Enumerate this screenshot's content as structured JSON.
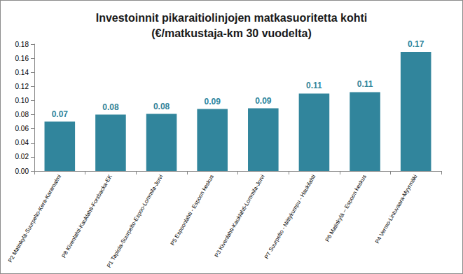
{
  "chart_data": {
    "type": "bar",
    "title": "Investoinnit pikaraitiolinjojen matkasuoritetta kohti\n(€/matkustaja-km 30 vuodelta)",
    "categories": [
      "P2 Matinkylä-Suurpelto-Kera-Karamalmi",
      "P8 Kivenlahti-Kauklahti-Forsbacka-EK",
      "P1 Tapiola-Suurpelto-Espoo-Lommila-Jorvi",
      "P5 Espoonlahti - Espoon keskus",
      "P3 Kivenlahti-Kauklahti-Lommila-Jorvi",
      "P7 Suurpelto - Niittykumpu - Haukilahti",
      "P6 Matinkylä – Espoon keskus",
      "P4 Vermo-Lintuvaara-Myyrmäki"
    ],
    "values": [
      0.07,
      0.08,
      0.081,
      0.088,
      0.089,
      0.11,
      0.112,
      0.169
    ],
    "value_labels": [
      "0.07",
      "0.08",
      "0.08",
      "0.09",
      "0.09",
      "0.11",
      "0.11",
      "0.17"
    ],
    "color": "#31859c",
    "data_labels": true,
    "ylim": [
      0,
      0.18
    ],
    "yticks": [
      {
        "value": 0,
        "label": "0.00"
      },
      {
        "value": 0.02,
        "label": "0.02"
      },
      {
        "value": 0.04,
        "label": "0.04"
      },
      {
        "value": 0.06,
        "label": "0.06"
      },
      {
        "value": 0.08,
        "label": "0.08"
      },
      {
        "value": 0.1,
        "label": "0.10"
      },
      {
        "value": 0.12,
        "label": "0.12"
      },
      {
        "value": 0.14,
        "label": "0.14"
      },
      {
        "value": 0.16,
        "label": "0.16"
      },
      {
        "value": 0.18,
        "label": "0.18"
      }
    ],
    "grid": false
  }
}
